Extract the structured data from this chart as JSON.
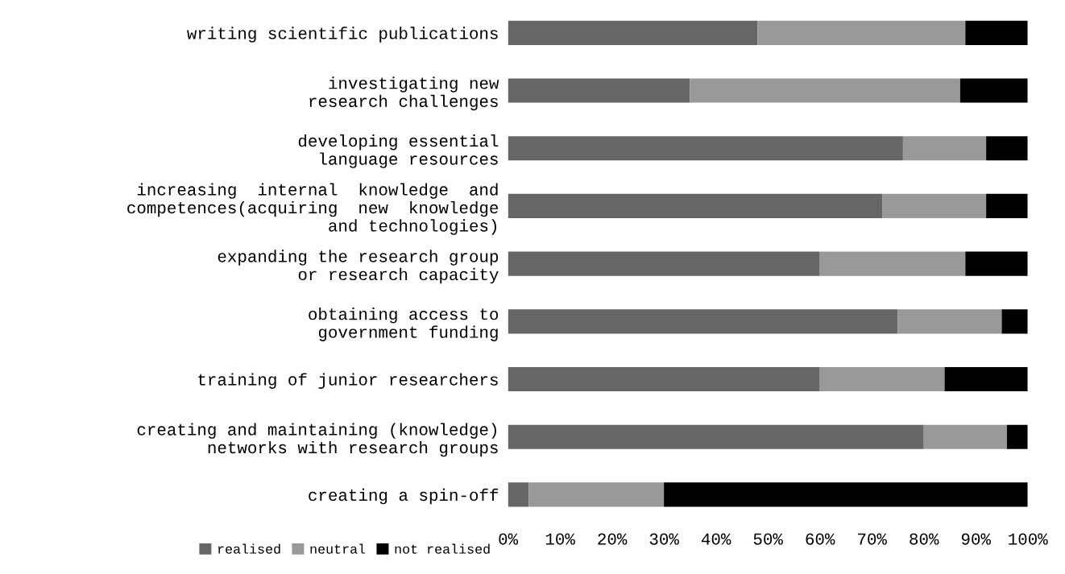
{
  "chart_data": {
    "type": "bar",
    "orientation": "horizontal",
    "stacked": true,
    "categories": [
      "writing scientific publications",
      "investigating new\nresearch challenges",
      "developing essential\nlanguage resources",
      "increasing  internal  knowledge  and\ncompetences(acquiring  new  knowledge\nand technologies)",
      "expanding the research group\nor research capacity",
      "obtaining access to\ngovernment funding",
      "training of junior researchers",
      "creating and maintaining (knowledge)\nnetworks with research groups",
      "creating a spin-off"
    ],
    "series": [
      {
        "name": "realised",
        "color": "#666666",
        "values": [
          48,
          35,
          76,
          72,
          60,
          75,
          60,
          80,
          4
        ]
      },
      {
        "name": "neutral",
        "color": "#999999",
        "values": [
          40,
          52,
          16,
          20,
          28,
          20,
          24,
          16,
          26
        ]
      },
      {
        "name": "not realised",
        "color": "#000000",
        "values": [
          12,
          13,
          8,
          8,
          12,
          5,
          16,
          4,
          70
        ]
      }
    ],
    "xlim": [
      0,
      100
    ],
    "xticks": [
      {
        "value": 0,
        "label": "0%"
      },
      {
        "value": 10,
        "label": "10%"
      },
      {
        "value": 20,
        "label": "20%"
      },
      {
        "value": 30,
        "label": "30%"
      },
      {
        "value": 40,
        "label": "40%"
      },
      {
        "value": 50,
        "label": "50%"
      },
      {
        "value": 60,
        "label": "60%"
      },
      {
        "value": 70,
        "label": "70%"
      },
      {
        "value": 80,
        "label": "80%"
      },
      {
        "value": 90,
        "label": "90%"
      },
      {
        "value": 100,
        "label": "100%"
      }
    ],
    "grid": false,
    "legend": "bottom left"
  }
}
